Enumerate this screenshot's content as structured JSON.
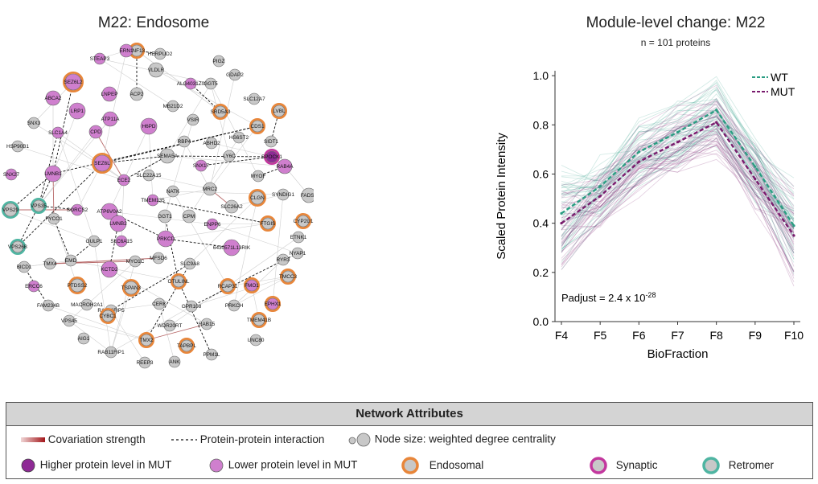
{
  "network": {
    "title": "M22: Endosome",
    "nodes": [
      {
        "label": "RNF13",
        "cat": "endosomal",
        "fill": "grey",
        "size": 5
      },
      {
        "label": "ERN1",
        "cat": "none",
        "fill": "lower",
        "size": 6
      },
      {
        "label": "STEAP3",
        "cat": "none",
        "fill": "lower",
        "size": 5
      },
      {
        "label": "HERPUD2",
        "cat": "none",
        "fill": "grey",
        "size": 5
      },
      {
        "label": "PIGZ",
        "cat": "none",
        "fill": "grey",
        "size": 5
      },
      {
        "label": "VLDLR",
        "cat": "none",
        "fill": "grey",
        "size": 7
      },
      {
        "label": "SEZ6L2",
        "cat": "endosomal",
        "fill": "lower",
        "size": 8
      },
      {
        "label": "ALG4031Z0",
        "cat": "none",
        "fill": "lower",
        "size": 5
      },
      {
        "label": "GGT5",
        "cat": "none",
        "fill": "grey",
        "size": 5
      },
      {
        "label": "GDAP2",
        "cat": "none",
        "fill": "grey",
        "size": 5
      },
      {
        "label": "ABCA2",
        "cat": "none",
        "fill": "lower",
        "size": 7
      },
      {
        "label": "LNPEP",
        "cat": "none",
        "fill": "lower",
        "size": 7
      },
      {
        "label": "ACP2",
        "cat": "none",
        "fill": "grey",
        "size": 6
      },
      {
        "label": "SLC12A7",
        "cat": "none",
        "fill": "grey",
        "size": 5
      },
      {
        "label": "LRP1",
        "cat": "none",
        "fill": "lower",
        "size": 8
      },
      {
        "label": "MB21D2",
        "cat": "none",
        "fill": "grey",
        "size": 5
      },
      {
        "label": "SRD5A3",
        "cat": "endosomal",
        "fill": "grey",
        "size": 5
      },
      {
        "label": "LVBL",
        "cat": "endosomal",
        "fill": "grey",
        "size": 5
      },
      {
        "label": "SNX3",
        "cat": "none",
        "fill": "grey",
        "size": 5
      },
      {
        "label": "ATP11A",
        "cat": "none",
        "fill": "lower",
        "size": 7
      },
      {
        "label": "VSIR",
        "cat": "none",
        "fill": "grey",
        "size": 5
      },
      {
        "label": "SLC1A4",
        "cat": "none",
        "fill": "lower",
        "size": 5
      },
      {
        "label": "CPD",
        "cat": "none",
        "fill": "lower",
        "size": 6
      },
      {
        "label": "H6PD",
        "cat": "none",
        "fill": "lower",
        "size": 8
      },
      {
        "label": "CDS1",
        "cat": "endosomal",
        "fill": "grey",
        "size": 5
      },
      {
        "label": "HSP90B1",
        "cat": "none",
        "fill": "grey",
        "size": 5
      },
      {
        "label": "RBP4",
        "cat": "none",
        "fill": "grey",
        "size": 5
      },
      {
        "label": "ABHD2",
        "cat": "none",
        "fill": "grey",
        "size": 5
      },
      {
        "label": "HS6ST2",
        "cat": "none",
        "fill": "grey",
        "size": 5
      },
      {
        "label": "SIDT1",
        "cat": "none",
        "fill": "grey",
        "size": 5
      },
      {
        "label": "SEMA5A",
        "cat": "none",
        "fill": "grey",
        "size": 7
      },
      {
        "label": "SEZ6L",
        "cat": "endosomal",
        "fill": "lower",
        "size": 8
      },
      {
        "label": "SNX27",
        "cat": "none",
        "fill": "lower",
        "size": 5
      },
      {
        "label": "LMNB1",
        "cat": "none",
        "fill": "lower",
        "size": 8
      },
      {
        "label": "SNX17",
        "cat": "none",
        "fill": "lower",
        "size": 5
      },
      {
        "label": "LY6C",
        "cat": "none",
        "fill": "grey",
        "size": 5
      },
      {
        "label": "SPOCK1",
        "cat": "synaptic",
        "fill": "higher",
        "size": 5
      },
      {
        "label": "RAB4A",
        "cat": "none",
        "fill": "lower",
        "size": 7
      },
      {
        "label": "SLC22A15",
        "cat": "none",
        "fill": "grey",
        "size": 5
      },
      {
        "label": "ECE2",
        "cat": "none",
        "fill": "lower",
        "size": 5
      },
      {
        "label": "MYOF",
        "cat": "none",
        "fill": "grey",
        "size": 5
      },
      {
        "label": "VPS29",
        "cat": "retromer",
        "fill": "grey",
        "size": 6
      },
      {
        "label": "VPS35",
        "cat": "retromer",
        "fill": "grey",
        "size": 5
      },
      {
        "label": "NATK",
        "cat": "none",
        "fill": "grey",
        "size": 5
      },
      {
        "label": "MRC2",
        "cat": "none",
        "fill": "grey",
        "size": 6
      },
      {
        "label": "CLGN",
        "cat": "endosomal",
        "fill": "grey",
        "size": 6
      },
      {
        "label": "SYNDIG1",
        "cat": "none",
        "fill": "grey",
        "size": 5
      },
      {
        "label": "FADS6",
        "cat": "none",
        "fill": "grey",
        "size": 7
      },
      {
        "label": "SORCS2",
        "cat": "none",
        "fill": "lower",
        "size": 5
      },
      {
        "label": "ATP6V0A2",
        "cat": "none",
        "fill": "lower",
        "size": 8
      },
      {
        "label": "TMEM135",
        "cat": "none",
        "fill": "lower",
        "size": 5
      },
      {
        "label": "FYCO1",
        "cat": "none",
        "fill": "grey",
        "size": 5
      },
      {
        "label": "LMNB2",
        "cat": "none",
        "fill": "lower",
        "size": 8
      },
      {
        "label": "GGT1",
        "cat": "none",
        "fill": "grey",
        "size": 6
      },
      {
        "label": "CPM",
        "cat": "none",
        "fill": "grey",
        "size": 6
      },
      {
        "label": "SLC26A2",
        "cat": "none",
        "fill": "grey",
        "size": 6
      },
      {
        "label": "ENPP6",
        "cat": "none",
        "fill": "lower",
        "size": 5
      },
      {
        "label": "FTGIS",
        "cat": "endosomal",
        "fill": "grey",
        "size": 5
      },
      {
        "label": "CYP2U1",
        "cat": "endosomal",
        "fill": "grey",
        "size": 5
      },
      {
        "label": "GULP1",
        "cat": "none",
        "fill": "grey",
        "size": 5
      },
      {
        "label": "SLC6A15",
        "cat": "none",
        "fill": "lower",
        "size": 5
      },
      {
        "label": "PRKCD",
        "cat": "none",
        "fill": "lower",
        "size": 8
      },
      {
        "label": "ETNK1",
        "cat": "none",
        "fill": "grey",
        "size": 5
      },
      {
        "label": "VPS26B",
        "cat": "retromer",
        "fill": "grey",
        "size": 5
      },
      {
        "label": "6430571L13RIK",
        "cat": "none",
        "fill": "lower",
        "size": 8
      },
      {
        "label": "NYAP1",
        "cat": "none",
        "fill": "grey",
        "size": 5
      },
      {
        "label": "EMD",
        "cat": "none",
        "fill": "grey",
        "size": 5
      },
      {
        "label": "MYO1C",
        "cat": "none",
        "fill": "grey",
        "size": 5
      },
      {
        "label": "MFSD6",
        "cat": "none",
        "fill": "grey",
        "size": 5
      },
      {
        "label": "RYR3",
        "cat": "none",
        "fill": "grey",
        "size": 5
      },
      {
        "label": "BICD1",
        "cat": "none",
        "fill": "grey",
        "size": 5
      },
      {
        "label": "TMX4",
        "cat": "none",
        "fill": "grey",
        "size": 5
      },
      {
        "label": "KCTD2",
        "cat": "none",
        "fill": "lower",
        "size": 8
      },
      {
        "label": "SLC9A8",
        "cat": "none",
        "fill": "grey",
        "size": 5
      },
      {
        "label": "ERCC6",
        "cat": "none",
        "fill": "lower",
        "size": 5
      },
      {
        "label": "TMCC3",
        "cat": "endosomal",
        "fill": "grey",
        "size": 5
      },
      {
        "label": "PTDSS2",
        "cat": "endosomal",
        "fill": "grey",
        "size": 6
      },
      {
        "label": "TSPAN3",
        "cat": "endosomal",
        "fill": "grey",
        "size": 6
      },
      {
        "label": "OTULINL",
        "cat": "endosomal",
        "fill": "grey",
        "size": 5
      },
      {
        "label": "RCAP31",
        "cat": "endosomal",
        "fill": "grey",
        "size": 5
      },
      {
        "label": "FMO1",
        "cat": "endosomal",
        "fill": "lower",
        "size": 5
      },
      {
        "label": "FAM234B",
        "cat": "none",
        "fill": "grey",
        "size": 5
      },
      {
        "label": "MACROH2A1",
        "cat": "none",
        "fill": "grey",
        "size": 5
      },
      {
        "label": "RAB11FIP5",
        "cat": "none",
        "fill": "grey",
        "size": 5
      },
      {
        "label": "CYBC1",
        "cat": "endosomal",
        "fill": "grey",
        "size": 5
      },
      {
        "label": "CERK",
        "cat": "none",
        "fill": "grey",
        "size": 5
      },
      {
        "label": "GPR108",
        "cat": "none",
        "fill": "grey",
        "size": 5
      },
      {
        "label": "PRKCH",
        "cat": "none",
        "fill": "grey",
        "size": 5
      },
      {
        "label": "EPHX1",
        "cat": "endosomal",
        "fill": "lower",
        "size": 5
      },
      {
        "label": "VPS45",
        "cat": "none",
        "fill": "grey",
        "size": 5
      },
      {
        "label": "TMEM41B",
        "cat": "endosomal",
        "fill": "grey",
        "size": 5
      },
      {
        "label": "AIG1",
        "cat": "none",
        "fill": "grey",
        "size": 5
      },
      {
        "label": "WDR20RT",
        "cat": "none",
        "fill": "grey",
        "size": 5
      },
      {
        "label": "RAB15",
        "cat": "none",
        "fill": "grey",
        "size": 5
      },
      {
        "label": "UNC80",
        "cat": "none",
        "fill": "grey",
        "size": 5
      },
      {
        "label": "TMX2",
        "cat": "endosomal",
        "fill": "grey",
        "size": 5
      },
      {
        "label": "TAPBPL",
        "cat": "endosomal",
        "fill": "grey",
        "size": 5
      },
      {
        "label": "RAB11FIP1",
        "cat": "none",
        "fill": "grey",
        "size": 5
      },
      {
        "label": "PPM1L",
        "cat": "none",
        "fill": "grey",
        "size": 5
      },
      {
        "label": "REEP3",
        "cat": "none",
        "fill": "grey",
        "size": 5
      },
      {
        "label": "ANK",
        "cat": "none",
        "fill": "grey",
        "size": 5
      }
    ]
  },
  "chart_data": {
    "type": "line",
    "title": "Module-level change: M22",
    "subtitle": "n = 101 proteins",
    "xlabel": "BioFraction",
    "ylabel": "Scaled Protein Intensity",
    "categories": [
      "F4",
      "F5",
      "F6",
      "F7",
      "F8",
      "F9",
      "F10"
    ],
    "ylim": [
      0.0,
      1.02
    ],
    "yticks": [
      "0.0",
      "0.2",
      "0.4",
      "0.6",
      "0.8",
      "1.0"
    ],
    "series": [
      {
        "name": "WT",
        "color": "#2a9d82",
        "style": "dashed",
        "values": [
          0.44,
          0.55,
          0.69,
          0.77,
          0.86,
          0.63,
          0.39
        ]
      },
      {
        "name": "MUT",
        "color": "#7a1c6e",
        "style": "dashed",
        "values": [
          0.4,
          0.51,
          0.65,
          0.73,
          0.81,
          0.58,
          0.35
        ]
      }
    ],
    "annotation": {
      "text": "Padjust = 2.4 x 10",
      "exponent": "-28"
    },
    "legend_position": "top-right"
  },
  "legend": {
    "header": "Network Attributes",
    "covariation": "Covariation strength",
    "ppi": "Protein-protein interaction",
    "node_size": "Node size: weighted degree centrality",
    "higher": "Higher protein level in MUT",
    "lower": "Lower protein level in MUT",
    "endosomal": "Endosomal",
    "synaptic": "Synaptic",
    "retromer": "Retromer"
  },
  "colors": {
    "grey_node": "#c8c8c8",
    "lower_node": "#cf7fce",
    "higher_node": "#8e2a95",
    "endosomal_ring": "#e8863a",
    "synaptic_ring": "#c3389e",
    "retromer_ring": "#4fb5a2",
    "wt": "#2a9d82",
    "mut": "#7a1c6e"
  }
}
